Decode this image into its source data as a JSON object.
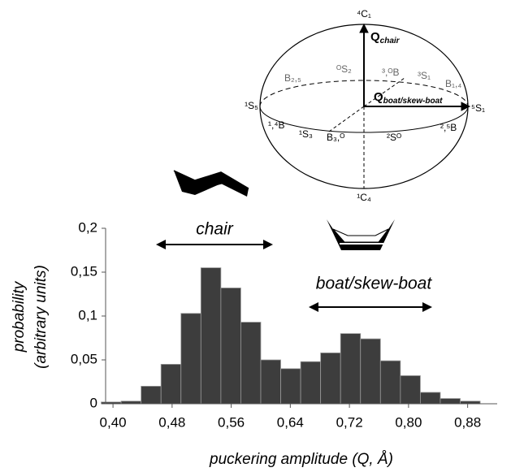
{
  "chart_data": {
    "type": "histogram",
    "bins": [
      0.384,
      0.411,
      0.438,
      0.465,
      0.492,
      0.519,
      0.546,
      0.573,
      0.6,
      0.627,
      0.654,
      0.681,
      0.708,
      0.735,
      0.762,
      0.789,
      0.816,
      0.843,
      0.87,
      0.897
    ],
    "values": [
      0.002,
      0.003,
      0.02,
      0.045,
      0.103,
      0.155,
      0.132,
      0.093,
      0.05,
      0.04,
      0.048,
      0.058,
      0.08,
      0.074,
      0.049,
      0.032,
      0.013,
      0.006,
      0.003
    ],
    "color": "#3d3d3d",
    "xlim": [
      0.39,
      0.92
    ],
    "xticks": [
      {
        "value": 0.4,
        "label": "0,40"
      },
      {
        "value": 0.48,
        "label": "0,48"
      },
      {
        "value": 0.56,
        "label": "0,56"
      },
      {
        "value": 0.64,
        "label": "0,64"
      },
      {
        "value": 0.72,
        "label": "0,72"
      },
      {
        "value": 0.8,
        "label": "0,80"
      },
      {
        "value": 0.88,
        "label": "0,88"
      }
    ],
    "ylim": [
      0,
      0.2
    ],
    "yticks": [
      0,
      {
        "value": 0.05,
        "label": "0,05"
      },
      {
        "value": 0.1,
        "label": "0,1"
      },
      {
        "value": 0.15,
        "label": "0,15"
      },
      {
        "value": 0.2,
        "label": "0,2"
      }
    ],
    "xlabel": "puckering amplitude (Q, Å)",
    "ylabel": [
      "probability",
      "(arbitrary units)"
    ],
    "annotations": [
      "chair",
      "boat/skew-boat"
    ]
  },
  "diagram": {
    "q_chair": {
      "symbol": "Q",
      "sub": "chair"
    },
    "q_boat": {
      "symbol": "Q",
      "sub": "boat/skew-boat"
    },
    "labels": [
      "⁴C₁",
      "B₂,₅",
      "ᴼS₂",
      "³,ᴼB",
      "³S₁",
      "B₁,₄",
      "¹S₅",
      "⁵S₁",
      "¹,⁴B",
      "¹S₃",
      "B₃,ᴼ",
      "²Sᴼ",
      "²,⁵B",
      "¹C₄"
    ]
  }
}
